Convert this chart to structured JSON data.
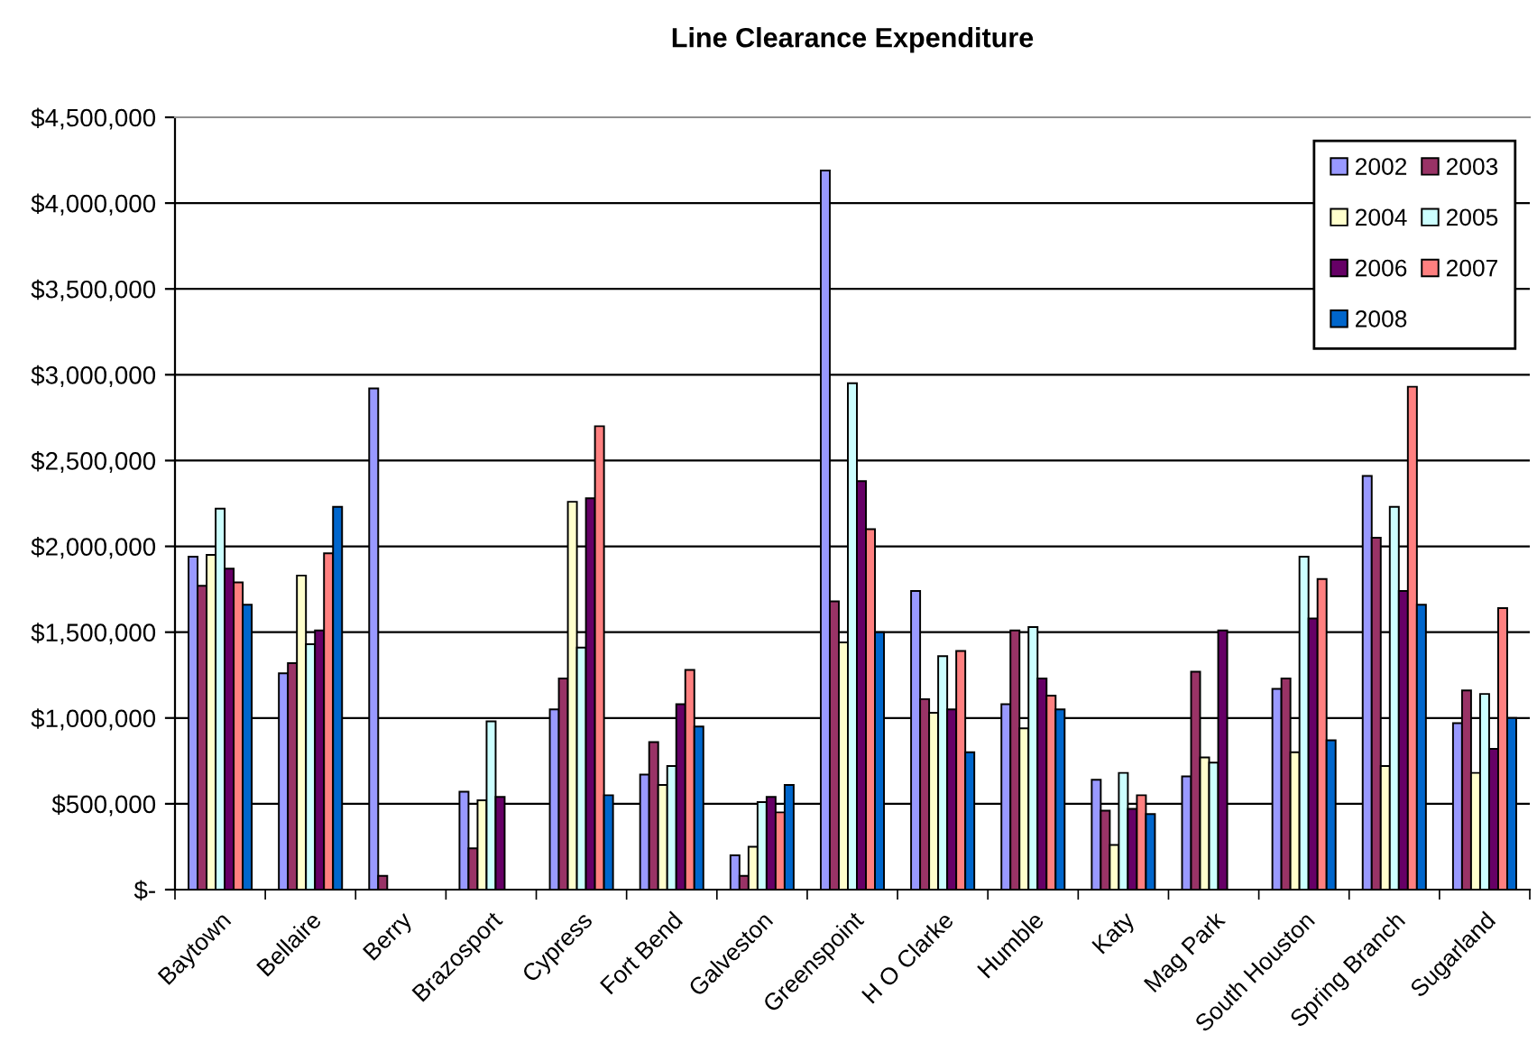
{
  "chart_data": {
    "type": "bar",
    "title": "Line Clearance Expenditure",
    "categories": [
      "Baytown",
      "Bellaire",
      "Berry",
      "Brazosport",
      "Cypress",
      "Fort Bend",
      "Galveston",
      "Greenspoint",
      "H O Clarke",
      "Humble",
      "Katy",
      "Mag Park",
      "South Houston",
      "Spring Branch",
      "Sugarland"
    ],
    "series": [
      {
        "name": "2002",
        "color": "#9999ff",
        "values": [
          1940000,
          1260000,
          2920000,
          570000,
          1050000,
          670000,
          200000,
          4190000,
          1740000,
          1080000,
          640000,
          660000,
          1170000,
          2410000,
          970000
        ]
      },
      {
        "name": "2003",
        "color": "#993366",
        "values": [
          1770000,
          1320000,
          80000,
          240000,
          1230000,
          860000,
          80000,
          1680000,
          1110000,
          1510000,
          460000,
          1270000,
          1230000,
          2050000,
          1160000
        ]
      },
      {
        "name": "2004",
        "color": "#ffffcc",
        "values": [
          1950000,
          1830000,
          null,
          520000,
          2260000,
          610000,
          250000,
          1440000,
          1030000,
          940000,
          260000,
          770000,
          800000,
          720000,
          680000
        ]
      },
      {
        "name": "2005",
        "color": "#ccffff",
        "values": [
          2220000,
          1430000,
          null,
          980000,
          1410000,
          720000,
          510000,
          2950000,
          1360000,
          1530000,
          680000,
          740000,
          1940000,
          2230000,
          1140000
        ]
      },
      {
        "name": "2006",
        "color": "#660066",
        "values": [
          1870000,
          1510000,
          null,
          540000,
          2280000,
          1080000,
          540000,
          2380000,
          1050000,
          1230000,
          470000,
          1510000,
          1580000,
          1740000,
          820000
        ]
      },
      {
        "name": "2007",
        "color": "#ff8080",
        "values": [
          1790000,
          1960000,
          null,
          null,
          2700000,
          1280000,
          450000,
          2100000,
          1390000,
          1130000,
          550000,
          null,
          1810000,
          2930000,
          1640000
        ]
      },
      {
        "name": "2008",
        "color": "#0066cc",
        "values": [
          1660000,
          2230000,
          null,
          null,
          550000,
          950000,
          610000,
          1500000,
          800000,
          1050000,
          440000,
          null,
          870000,
          1660000,
          1000000
        ]
      }
    ],
    "ylim": [
      0,
      4500000
    ],
    "yticks": [
      {
        "value": 0,
        "label": "$-"
      },
      {
        "value": 500000,
        "label": "$500,000"
      },
      {
        "value": 1000000,
        "label": "$1,000,000"
      },
      {
        "value": 1500000,
        "label": "$1,500,000"
      },
      {
        "value": 2000000,
        "label": "$2,000,000"
      },
      {
        "value": 2500000,
        "label": "$2,500,000"
      },
      {
        "value": 3000000,
        "label": "$3,000,000"
      },
      {
        "value": 3500000,
        "label": "$3,500,000"
      },
      {
        "value": 4000000,
        "label": "$4,000,000"
      },
      {
        "value": 4500000,
        "label": "$4,500,000"
      }
    ],
    "grid": "y",
    "legend": "top right"
  }
}
